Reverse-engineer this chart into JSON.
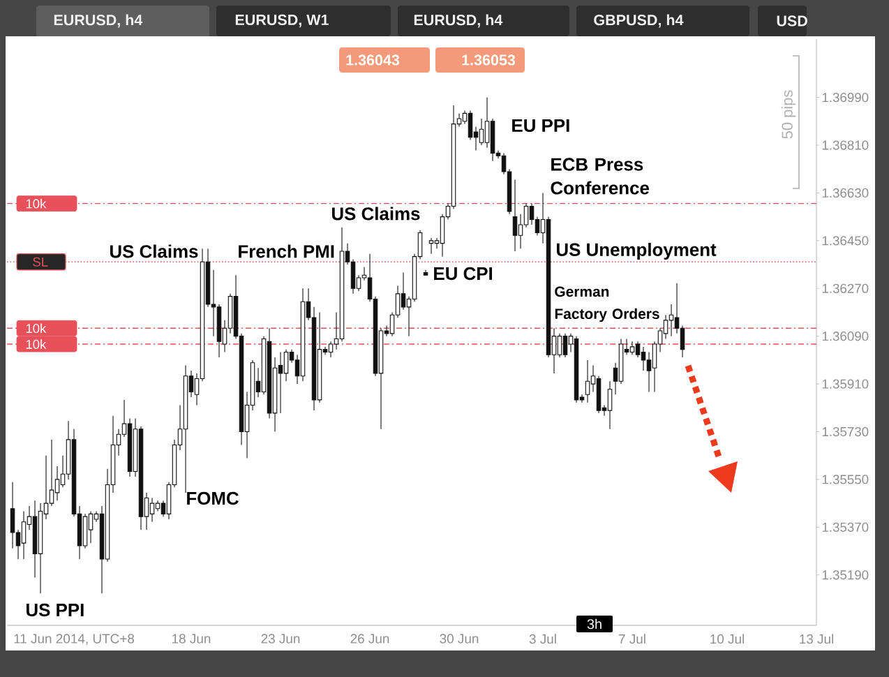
{
  "chart_data": {
    "type": "candlestick",
    "title": "EURUSD, h4",
    "color": "#111111",
    "categories": [
      null,
      null,
      null,
      null,
      null,
      null,
      null,
      null,
      null,
      null,
      null,
      "11 Jun 2014, UTC+8",
      null,
      null,
      null,
      null,
      null,
      null,
      null,
      null,
      null,
      null,
      null,
      null,
      null,
      null,
      null,
      null,
      null,
      null,
      null,
      null,
      "18 Jun",
      null,
      null,
      null,
      null,
      null,
      null,
      null,
      null,
      null,
      null,
      null,
      null,
      null,
      null,
      null,
      "23 Jun",
      null,
      null,
      null,
      null,
      null,
      null,
      null,
      null,
      null,
      null,
      null,
      null,
      null,
      null,
      null,
      "26 Jun",
      null,
      null,
      null,
      null,
      null,
      null,
      null,
      null,
      null,
      null,
      null,
      null,
      null,
      null,
      null,
      "30 Jun",
      null,
      null,
      null,
      null,
      null,
      null,
      null,
      null,
      null,
      null,
      null,
      null,
      null,
      null,
      "3 Jul",
      null,
      null,
      null,
      null,
      null,
      null,
      null,
      null,
      null,
      null,
      null,
      null,
      null,
      null,
      null,
      "7 Jul",
      null,
      null,
      null,
      null,
      null,
      null,
      null,
      null,
      null,
      null,
      null,
      null,
      null,
      null,
      null,
      null,
      "10 Jul",
      null,
      null,
      null,
      null,
      null,
      null,
      null,
      null,
      null,
      null,
      null,
      null,
      null,
      null,
      null,
      "13 Jul"
    ],
    "ohlc": [
      [
        1.3544,
        1.3554,
        1.3529,
        1.3535
      ],
      [
        1.3535,
        1.3536,
        1.3525,
        1.353
      ],
      [
        1.3531,
        1.3543,
        1.3525,
        1.3539
      ],
      [
        1.3538,
        1.3545,
        1.3536,
        1.3541
      ],
      [
        1.3541,
        1.3547,
        1.3518,
        1.3527
      ],
      [
        1.3527,
        1.3546,
        1.3512,
        1.3543
      ],
      [
        1.3542,
        1.3564,
        1.354,
        1.3546
      ],
      [
        1.3546,
        1.357,
        1.3545,
        1.3551
      ],
      [
        1.355,
        1.356,
        1.3547,
        1.3555
      ],
      [
        1.3553,
        1.3564,
        1.3552,
        1.3557
      ],
      [
        1.3557,
        1.3577,
        1.3555,
        1.357
      ],
      [
        1.357,
        1.3574,
        1.3541,
        1.3542
      ],
      [
        1.3542,
        1.3545,
        1.3525,
        1.353
      ],
      [
        1.353,
        1.3542,
        1.3529,
        1.3541
      ],
      [
        1.3536,
        1.3543,
        1.3531,
        1.3542
      ],
      [
        1.354,
        1.3543,
        1.3539,
        1.3542
      ],
      [
        1.3542,
        1.3545,
        1.3512,
        1.3525
      ],
      [
        1.3525,
        1.3559,
        1.3524,
        1.3553
      ],
      [
        1.3553,
        1.3579,
        1.355,
        1.3568
      ],
      [
        1.3568,
        1.3574,
        1.3564,
        1.3572
      ],
      [
        1.3572,
        1.3585,
        1.3571,
        1.3576
      ],
      [
        1.3576,
        1.3578,
        1.3556,
        1.3558
      ],
      [
        1.3558,
        1.3578,
        1.3556,
        1.3574
      ],
      [
        1.3574,
        1.3575,
        1.3536,
        1.3541
      ],
      [
        1.3541,
        1.355,
        1.3536,
        1.3548
      ],
      [
        1.3542,
        1.3548,
        1.3539,
        1.3546
      ],
      [
        1.3544,
        1.3547,
        1.3543,
        1.3546
      ],
      [
        1.3546,
        1.3547,
        1.3541,
        1.3542
      ],
      [
        1.3542,
        1.3554,
        1.354,
        1.3553
      ],
      [
        1.3553,
        1.357,
        1.3552,
        1.3568
      ],
      [
        1.3568,
        1.3583,
        1.3566,
        1.3574
      ],
      [
        1.3574,
        1.3598,
        1.355,
        1.3594
      ],
      [
        1.3594,
        1.3596,
        1.3586,
        1.3588
      ],
      [
        1.3587,
        1.3595,
        1.3583,
        1.3593
      ],
      [
        1.3593,
        1.3642,
        1.3592,
        1.3637
      ],
      [
        1.3637,
        1.3642,
        1.362,
        1.3621
      ],
      [
        1.3621,
        1.3634,
        1.3609,
        1.362
      ],
      [
        1.362,
        1.3621,
        1.3601,
        1.3607
      ],
      [
        1.3606,
        1.3615,
        1.3603,
        1.3612
      ],
      [
        1.3612,
        1.3625,
        1.361,
        1.3624
      ],
      [
        1.3624,
        1.3632,
        1.3608,
        1.3609
      ],
      [
        1.3609,
        1.361,
        1.3568,
        1.3573
      ],
      [
        1.3573,
        1.3588,
        1.3563,
        1.3583
      ],
      [
        1.3583,
        1.36,
        1.3581,
        1.3599
      ],
      [
        1.3592,
        1.3597,
        1.3586,
        1.3588
      ],
      [
        1.3588,
        1.3609,
        1.3587,
        1.3608
      ],
      [
        1.3607,
        1.3612,
        1.3578,
        1.358
      ],
      [
        1.358,
        1.3601,
        1.3573,
        1.3597
      ],
      [
        1.3598,
        1.3603,
        1.358,
        1.3595
      ],
      [
        1.3595,
        1.3604,
        1.3592,
        1.3603
      ],
      [
        1.3603,
        1.3604,
        1.3599,
        1.36
      ],
      [
        1.36,
        1.3602,
        1.3591,
        1.3594
      ],
      [
        1.3594,
        1.3627,
        1.3592,
        1.3622
      ],
      [
        1.3622,
        1.3627,
        1.3615,
        1.3616
      ],
      [
        1.3616,
        1.362,
        1.3581,
        1.3585
      ],
      [
        1.3585,
        1.3618,
        1.3584,
        1.3604
      ],
      [
        1.3604,
        1.3605,
        1.3602,
        1.3603
      ],
      [
        1.3603,
        1.3607,
        1.3601,
        1.3606
      ],
      [
        1.3606,
        1.3618,
        1.3604,
        1.3608
      ],
      [
        1.3608,
        1.365,
        1.3607,
        1.3641
      ],
      [
        1.3641,
        1.3644,
        1.3636,
        1.3637
      ],
      [
        1.3637,
        1.3638,
        1.3625,
        1.3627
      ],
      [
        1.3627,
        1.3632,
        1.3626,
        1.3631
      ],
      [
        1.3631,
        1.3635,
        1.363,
        1.3632
      ],
      [
        1.3631,
        1.364,
        1.3622,
        1.3623
      ],
      [
        1.3623,
        1.3624,
        1.3594,
        1.3595
      ],
      [
        1.3595,
        1.3612,
        1.3574,
        1.3611
      ],
      [
        1.3611,
        1.3613,
        1.3609,
        1.361
      ],
      [
        1.361,
        1.3618,
        1.3609,
        1.3617
      ],
      [
        1.3617,
        1.3628,
        1.3616,
        1.3625
      ],
      [
        1.3625,
        1.3633,
        1.3619,
        1.362
      ],
      [
        1.362,
        1.3624,
        1.3609,
        1.3623
      ],
      [
        1.3623,
        1.364,
        1.3622,
        1.3639
      ],
      [
        1.3639,
        1.3649,
        1.3638,
        1.3648
      ],
      [
        1.3633,
        1.3634,
        1.3632,
        1.3632
      ],
      [
        1.3644,
        1.3646,
        1.364,
        1.3645
      ],
      [
        1.3644,
        1.3646,
        1.3642,
        1.3645
      ],
      [
        1.3644,
        1.3655,
        1.3639,
        1.3654
      ],
      [
        1.3654,
        1.3659,
        1.3653,
        1.3658
      ],
      [
        1.3658,
        1.3696,
        1.3657,
        1.3689
      ],
      [
        1.3689,
        1.3693,
        1.3688,
        1.3691
      ],
      [
        1.369,
        1.3694,
        1.3689,
        1.3693
      ],
      [
        1.3693,
        1.3694,
        1.3683,
        1.3684
      ],
      [
        1.3686,
        1.3688,
        1.3679,
        1.3684
      ],
      [
        1.3682,
        1.3691,
        1.3681,
        1.3687
      ],
      [
        1.3682,
        1.3699,
        1.368,
        1.369
      ],
      [
        1.369,
        1.3691,
        1.3675,
        1.3678
      ],
      [
        1.3678,
        1.3679,
        1.3676,
        1.3677
      ],
      [
        1.3677,
        1.3678,
        1.367,
        1.3671
      ],
      [
        1.3671,
        1.3672,
        1.3655,
        1.3656
      ],
      [
        1.3654,
        1.3668,
        1.3641,
        1.3647
      ],
      [
        1.3647,
        1.3655,
        1.3642,
        1.3651
      ],
      [
        1.3651,
        1.3659,
        1.365,
        1.3658
      ],
      [
        1.3658,
        1.3659,
        1.3651,
        1.3653
      ],
      [
        1.3653,
        1.3654,
        1.3647,
        1.3648
      ],
      [
        1.3648,
        1.3663,
        1.3644,
        1.3653
      ],
      [
        1.3653,
        1.3654,
        1.3601,
        1.3602
      ],
      [
        1.3602,
        1.3612,
        1.3595,
        1.3609
      ],
      [
        1.3602,
        1.361,
        1.3601,
        1.3609
      ],
      [
        1.3609,
        1.361,
        1.3601,
        1.3602
      ],
      [
        1.3606,
        1.361,
        1.3603,
        1.3609
      ],
      [
        1.3608,
        1.3609,
        1.3584,
        1.3585
      ],
      [
        1.3586,
        1.3587,
        1.3584,
        1.3585
      ],
      [
        1.3587,
        1.36,
        1.3584,
        1.3592
      ],
      [
        1.3591,
        1.3598,
        1.3588,
        1.3594
      ],
      [
        1.3593,
        1.3594,
        1.358,
        1.3581
      ],
      [
        1.3582,
        1.3583,
        1.3579,
        1.3581
      ],
      [
        1.3581,
        1.3592,
        1.3574,
        1.3589
      ],
      [
        1.3597,
        1.3599,
        1.3587,
        1.3592
      ],
      [
        1.3592,
        1.3608,
        1.3591,
        1.3606
      ],
      [
        1.3604,
        1.3608,
        1.3602,
        1.3603
      ],
      [
        1.3603,
        1.3607,
        1.3602,
        1.3605
      ],
      [
        1.3606,
        1.3607,
        1.3601,
        1.3602
      ],
      [
        1.3603,
        1.3605,
        1.3596,
        1.36
      ],
      [
        1.36,
        1.3603,
        1.3588,
        1.3596
      ],
      [
        1.3597,
        1.3607,
        1.3588,
        1.3606
      ],
      [
        1.3606,
        1.3612,
        1.3603,
        1.3611
      ],
      [
        1.361,
        1.3617,
        1.3608,
        1.3615
      ],
      [
        1.3615,
        1.3621,
        1.3609,
        1.3617
      ],
      [
        1.3616,
        1.3629,
        1.361,
        1.3612
      ],
      [
        1.3612,
        1.3613,
        1.3601,
        1.3604
      ],
      null,
      null,
      null,
      null,
      null,
      null,
      null,
      null,
      null,
      null,
      null,
      null,
      null,
      null,
      null,
      null,
      null,
      null,
      null,
      null,
      null,
      null,
      null,
      null
    ],
    "ylim": [
      1.35,
      1.3721
    ],
    "yticks": [
      {
        "value": 1.3519,
        "label": "1.35190"
      },
      {
        "value": 1.3537,
        "label": "1.35370"
      },
      {
        "value": 1.3555,
        "label": "1.35550"
      },
      {
        "value": 1.3573,
        "label": "1.35730"
      },
      {
        "value": 1.3591,
        "label": "1.35910"
      },
      {
        "value": 1.3609,
        "label": "1.36090"
      },
      {
        "value": 1.3627,
        "label": "1.36270"
      },
      {
        "value": 1.3645,
        "label": "1.36450"
      },
      {
        "value": 1.3663,
        "label": "1.36630"
      },
      {
        "value": 1.3681,
        "label": "1.36810"
      },
      {
        "value": 1.3699,
        "label": "1.36990"
      }
    ],
    "ref_lines": [
      {
        "axis": "y",
        "value": 1.3659,
        "label": "10k",
        "color": "#e8505a",
        "line_style": "dashed"
      },
      {
        "axis": "y",
        "value": 1.3637,
        "label": "SL",
        "color": "#e8505a",
        "line_style": "dotted"
      },
      {
        "axis": "y",
        "value": 1.3612,
        "label": "10k",
        "color": "#e8505a",
        "line_style": "dashed"
      },
      {
        "axis": "y",
        "value": 1.3606,
        "label": "10k",
        "color": "#e8505a",
        "line_style": "dashed"
      }
    ],
    "annotations": [
      "US PPI",
      "FOMC",
      "US Claims",
      "French PMI",
      "US Claims",
      "EU CPI",
      "EU PPI",
      "ECB Press Conference",
      "US Unemployment",
      "German Factory Orders",
      "50 pips",
      "3h",
      "EURUSD, W1",
      "EURUSD, h4",
      "GBPUSD, h4",
      "USD",
      "1.36043",
      "1.36053"
    ]
  }
}
